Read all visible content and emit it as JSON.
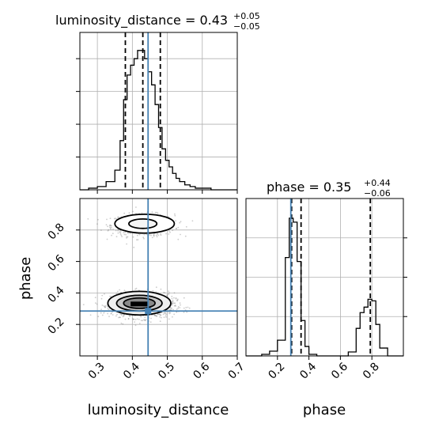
{
  "chart_data": {
    "type": "corner",
    "truths": {
      "luminosity_distance": 0.445,
      "phase": 0.285
    },
    "colors": {
      "truth": "#4682b4",
      "hist": "#000000",
      "grid": "#b0b0b0",
      "scatter": "#6f6f6f",
      "density_dark": "#000000",
      "density_light": "#f5f5f5"
    },
    "panels": {
      "ld_hist": {
        "title_name": "luminosity_distance",
        "title_value": "0.43",
        "title_plus": "+0.05",
        "title_minus": "−0.05",
        "xlim": [
          0.25,
          0.7
        ],
        "quantiles": [
          0.38,
          0.43,
          0.48
        ],
        "bin_edges": [
          0.25,
          0.275,
          0.3,
          0.325,
          0.35,
          0.365,
          0.375,
          0.385,
          0.395,
          0.405,
          0.415,
          0.425,
          0.435,
          0.445,
          0.455,
          0.465,
          0.475,
          0.485,
          0.495,
          0.505,
          0.515,
          0.525,
          0.535,
          0.55,
          0.565,
          0.58,
          0.6,
          0.625,
          0.65,
          0.7
        ],
        "counts": [
          0,
          1,
          2,
          5,
          12,
          30,
          55,
          70,
          76,
          80,
          85,
          85,
          80,
          72,
          64,
          52,
          38,
          25,
          18,
          14,
          10,
          7,
          5,
          3,
          2,
          1,
          1,
          0,
          0
        ],
        "count_max": 96
      },
      "phase_hist": {
        "title_name": "phase",
        "title_value": "0.35",
        "title_plus": "+0.44",
        "title_minus": "−0.06",
        "xlim": [
          0.0,
          1.0
        ],
        "quantiles": [
          0.29,
          0.35,
          0.79
        ],
        "bin_edges": [
          0.0,
          0.1,
          0.15,
          0.2,
          0.25,
          0.275,
          0.3,
          0.325,
          0.35,
          0.375,
          0.4,
          0.45,
          0.5,
          0.55,
          0.6,
          0.65,
          0.7,
          0.725,
          0.75,
          0.775,
          0.8,
          0.825,
          0.85,
          0.9,
          1.0
        ],
        "counts": [
          0,
          2,
          6,
          20,
          125,
          175,
          170,
          120,
          45,
          12,
          2,
          0,
          0,
          0,
          0,
          5,
          35,
          55,
          62,
          72,
          70,
          40,
          10,
          0
        ],
        "count_max": 200
      },
      "joint": {
        "xlim": [
          0.25,
          0.7
        ],
        "ylim": [
          0.0,
          1.0
        ],
        "modes": [
          {
            "cx": 0.43,
            "cy": 0.83,
            "sx": 0.045,
            "sy": 0.035,
            "n": 650
          },
          {
            "cx": 0.43,
            "cy": 0.32,
            "sx": 0.045,
            "sy": 0.04,
            "n": 1000
          }
        ],
        "contours": [
          {
            "cx": 0.435,
            "cy": 0.84,
            "rx": 0.085,
            "ry": 0.06
          },
          {
            "cx": 0.43,
            "cy": 0.84,
            "rx": 0.04,
            "ry": 0.03
          },
          {
            "cx": 0.42,
            "cy": 0.335,
            "rx": 0.09,
            "ry": 0.075
          },
          {
            "cx": 0.42,
            "cy": 0.335,
            "rx": 0.065,
            "ry": 0.05
          },
          {
            "cx": 0.42,
            "cy": 0.335,
            "rx": 0.045,
            "ry": 0.033
          }
        ]
      }
    },
    "xlabels": [
      "luminosity_distance",
      "phase"
    ],
    "ylabel": "phase",
    "xticks_ld": [
      0.3,
      0.4,
      0.5,
      0.6,
      0.7
    ],
    "xtick_labels_ld": [
      "0.3",
      "0.4",
      "0.5",
      "0.6",
      "0.7"
    ],
    "yticks_phase": [
      0.2,
      0.4,
      0.6,
      0.8
    ],
    "ytick_labels_phase": [
      "0.2",
      "0.4",
      "0.6",
      "0.8"
    ],
    "xticks_phase": [
      0.2,
      0.4,
      0.6,
      0.8
    ],
    "xtick_labels_phase": [
      "0.2",
      "0.4",
      "0.6",
      "0.8"
    ],
    "grid": true
  }
}
